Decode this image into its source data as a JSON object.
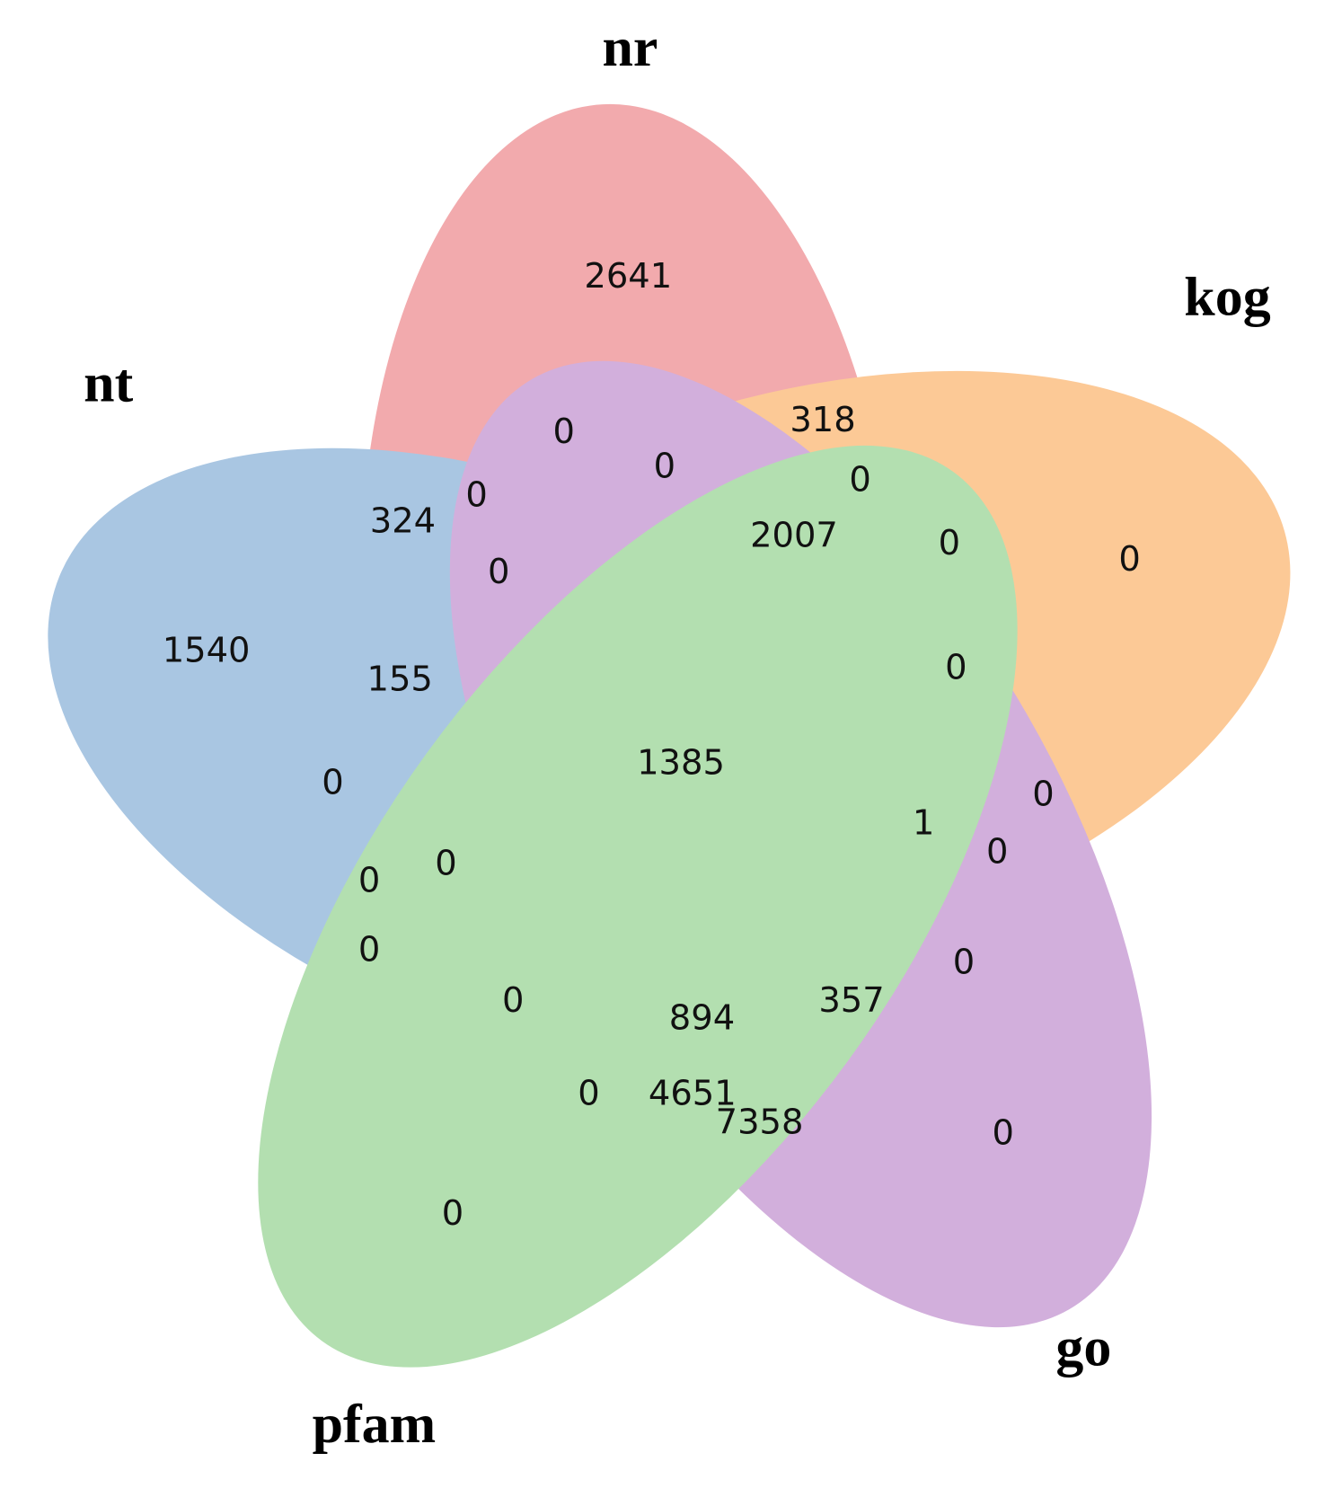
{
  "sets": [
    {
      "label": "nr"
    },
    {
      "label": "kog"
    },
    {
      "label": "nt"
    },
    {
      "label": "go"
    },
    {
      "label": "pfam"
    }
  ],
  "regions": [
    2641,
    318,
    0,
    0,
    0,
    0,
    324,
    2007,
    0,
    0,
    0,
    1540,
    155,
    0,
    1385,
    0,
    0,
    1,
    0,
    0,
    0,
    0,
    0,
    0,
    357,
    894,
    0,
    4651,
    7358,
    0,
    0
  ]
}
